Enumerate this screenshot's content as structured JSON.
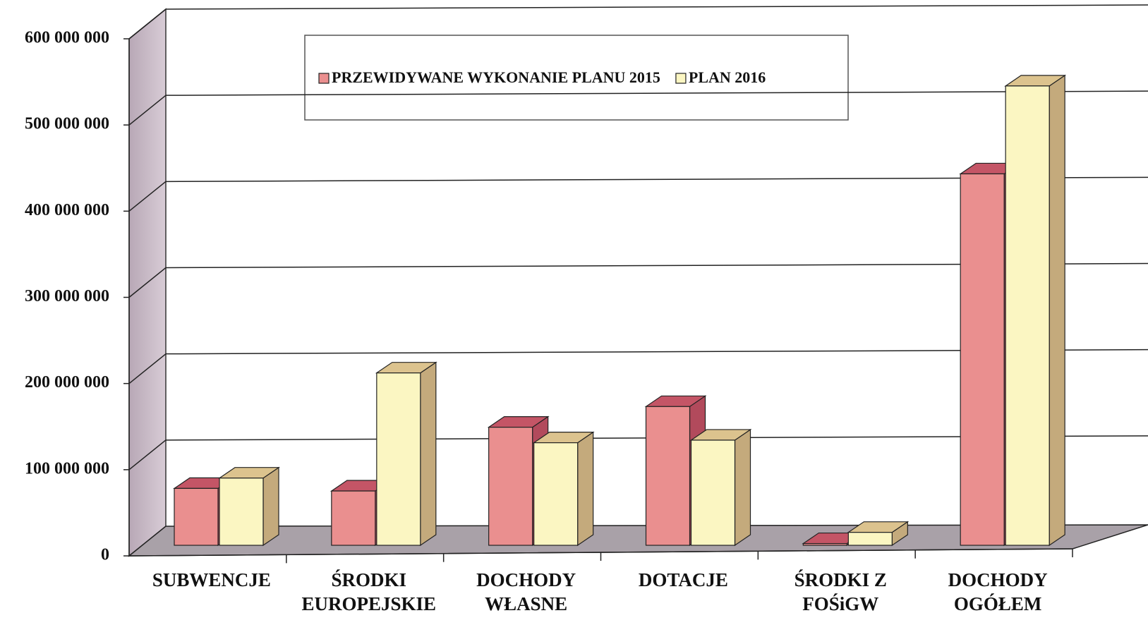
{
  "chart_data": {
    "type": "bar3d",
    "categories": [
      "SUBWENCJE",
      "ŚRODKI EUROPEJSKIE",
      "DOCHODY WŁASNE",
      "DOTACJE",
      "ŚRODKI Z FOŚiGW",
      "DOCHODY OGÓŁEM"
    ],
    "series": [
      {
        "name": "PRZEWIDYWANE WYKONANIE PLANU 2015",
        "color": "#ea8f8f",
        "values": [
          66000000,
          63000000,
          137000000,
          161000000,
          2000000,
          431000000
        ]
      },
      {
        "name": "PLAN 2016",
        "color": "#fbf6c2",
        "values": [
          78000000,
          200000000,
          119000000,
          122000000,
          15000000,
          533000000
        ]
      }
    ],
    "ylim": [
      0,
      600000000
    ],
    "yticks": [
      0,
      {
        "value": 100000000,
        "label": "100 000 000"
      },
      {
        "value": 200000000,
        "label": "200 000 000"
      },
      {
        "value": 300000000,
        "label": "300 000 000"
      },
      {
        "value": 400000000,
        "label": "400 000 000"
      },
      {
        "value": 500000000,
        "label": "500 000 000"
      },
      {
        "value": 600000000,
        "label": "600 000 000"
      }
    ],
    "grid": true,
    "legend": "top"
  }
}
